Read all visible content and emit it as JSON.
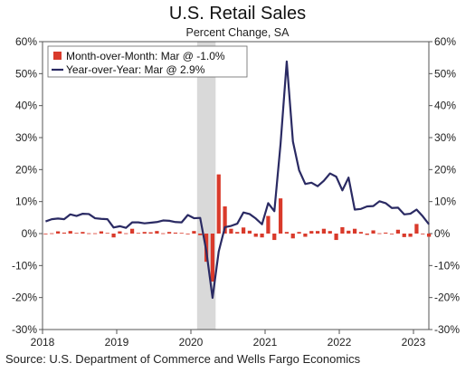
{
  "chart_data": {
    "type": "bar+line",
    "title": "U.S. Retail Sales",
    "subtitle": "Percent Change, SA",
    "source": "Source: U.S. Department of Commerce and Wells Fargo Economics",
    "x_start": "2018-01",
    "x_end": "2023-03",
    "x_ticks": [
      "2018",
      "2019",
      "2020",
      "2021",
      "2022",
      "2023"
    ],
    "ylim": [
      -30,
      60
    ],
    "y_ticks": [
      "-30%",
      "-20%",
      "-10%",
      "0%",
      "10%",
      "20%",
      "30%",
      "40%",
      "50%",
      "60%"
    ],
    "recession_shading": {
      "start": "2020-02",
      "end": "2020-04"
    },
    "colors": {
      "bars": "#d93a2b",
      "line": "#2a2a63",
      "shading": "#d9d9d9"
    },
    "legend": {
      "placement": "top-left"
    },
    "series": [
      {
        "name": "Month-over-Month: Mar @ -1.0%",
        "kind": "bar",
        "values": [
          -0.1,
          0.1,
          0.7,
          0.3,
          0.8,
          0.2,
          0.5,
          0.1,
          0.1,
          0.7,
          0.2,
          -1.2,
          0.7,
          0.1,
          1.5,
          0.2,
          0.5,
          0.4,
          0.8,
          0.1,
          0.5,
          0.3,
          0.2,
          -0.1,
          0.8,
          -0.5,
          -8.8,
          -15.0,
          18.5,
          8.5,
          1.5,
          0.5,
          1.9,
          0.9,
          -1.0,
          -1.2,
          5.5,
          -2.0,
          11.0,
          0.5,
          -1.5,
          0.5,
          -1.0,
          0.8,
          0.8,
          1.5,
          0.8,
          -2.0,
          2.0,
          0.9,
          1.5,
          0.5,
          -0.4,
          1.0,
          0.1,
          0.3,
          -0.2,
          1.2,
          -1.1,
          -1.0,
          3.0,
          -0.2,
          -1.0
        ]
      },
      {
        "name": "Year-over-Year: Mar @ 2.9%",
        "kind": "line",
        "values": [
          3.8,
          4.5,
          4.7,
          4.5,
          6.0,
          5.5,
          6.2,
          6.1,
          4.8,
          4.6,
          4.5,
          1.9,
          2.3,
          1.8,
          3.5,
          3.5,
          3.2,
          3.4,
          3.6,
          4.1,
          4.0,
          3.6,
          3.5,
          5.8,
          4.8,
          4.9,
          -5.5,
          -20.1,
          -5.6,
          2.0,
          2.4,
          3.1,
          6.6,
          6.1,
          4.7,
          2.9,
          9.5,
          7.0,
          28.0,
          53.8,
          28.8,
          19.8,
          15.5,
          15.9,
          14.8,
          16.5,
          18.8,
          17.8,
          13.5,
          17.5,
          7.5,
          7.7,
          8.5,
          8.6,
          10.1,
          9.5,
          8.0,
          8.1,
          6.0,
          6.2,
          7.5,
          5.4,
          2.9
        ]
      }
    ]
  }
}
